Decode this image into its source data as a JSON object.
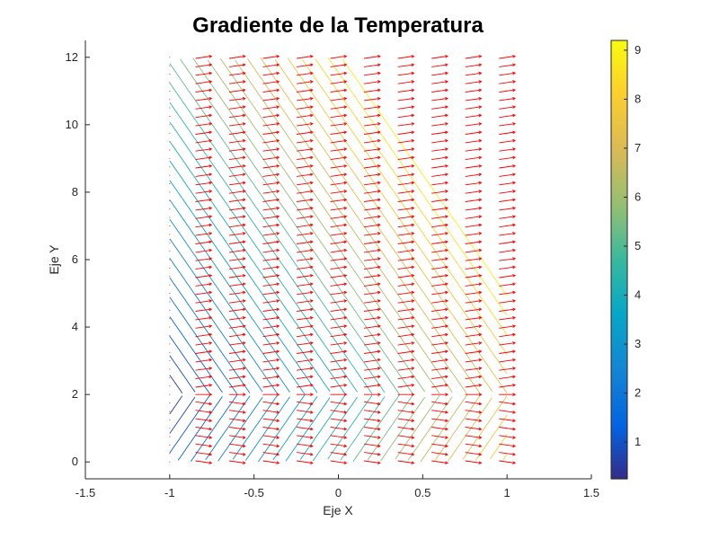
{
  "chart_data": {
    "type": "contour",
    "title": "Gradiente de la Temperatura",
    "xlabel": "Eje X",
    "ylabel": "Eje Y",
    "xlim": [
      -1.5,
      1.5
    ],
    "ylim": [
      -0.5,
      12.5
    ],
    "xticks": [
      -1.5,
      -1,
      -0.5,
      0,
      0.5,
      1,
      1.5
    ],
    "yticks": [
      0,
      2,
      4,
      6,
      8,
      10,
      12
    ],
    "colorbar": {
      "colormap": "parula",
      "range": [
        0.25,
        9.2
      ],
      "ticks": [
        1,
        2,
        3,
        4,
        5,
        6,
        7,
        8,
        9
      ]
    },
    "contour": {
      "x_range": [
        -1,
        1
      ],
      "y_range": [
        0,
        12
      ],
      "num_levels": 30,
      "center_y": 2
    },
    "quiver": {
      "color": "#ff0000",
      "x": [
        -1,
        -0.8,
        -0.6,
        -0.4,
        -0.2,
        0,
        0.2,
        0.4,
        0.6,
        0.8,
        1
      ],
      "y_range": [
        0,
        12
      ],
      "y_step": 0.25
    },
    "grid": false
  }
}
